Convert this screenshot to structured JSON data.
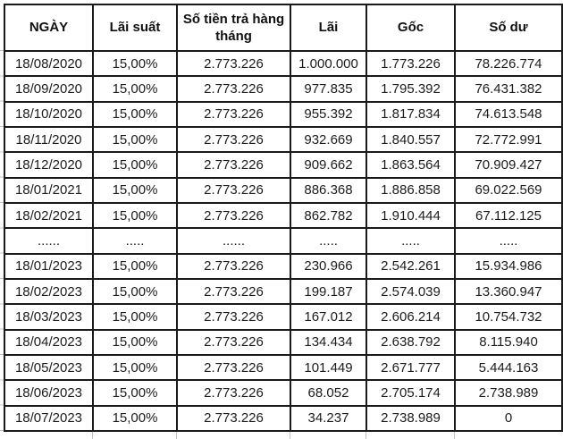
{
  "colors": {
    "background": "#ffffff",
    "table_border": "#1a1a1a",
    "header_text": "#111111",
    "cell_text": "#1c1c1c",
    "excel_gridline": "#c4c4c4"
  },
  "table": {
    "columns": [
      "NGÀY",
      "Lãi suất",
      "Số tiền trả hàng tháng",
      "Lãi",
      "Gốc",
      "Số dư"
    ],
    "rows": [
      [
        "18/08/2020",
        "15,00%",
        "2.773.226",
        "1.000.000",
        "1.773.226",
        "78.226.774"
      ],
      [
        "18/09/2020",
        "15,00%",
        "2.773.226",
        "977.835",
        "1.795.392",
        "76.431.382"
      ],
      [
        "18/10/2020",
        "15,00%",
        "2.773.226",
        "955.392",
        "1.817.834",
        "74.613.548"
      ],
      [
        "18/11/2020",
        "15,00%",
        "2.773.226",
        "932.669",
        "1.840.557",
        "72.772.991"
      ],
      [
        "18/12/2020",
        "15,00%",
        "2.773.226",
        "909.662",
        "1.863.564",
        "70.909.427"
      ],
      [
        "18/01/2021",
        "15,00%",
        "2.773.226",
        "886.368",
        "1.886.858",
        "69.022.569"
      ],
      [
        "18/02/2021",
        "15,00%",
        "2.773.226",
        "862.782",
        "1.910.444",
        "67.112.125"
      ],
      [
        "......",
        ".....",
        "......",
        ".....",
        ".....",
        "....."
      ],
      [
        "18/01/2023",
        "15,00%",
        "2.773.226",
        "230.966",
        "2.542.261",
        "15.934.986"
      ],
      [
        "18/02/2023",
        "15,00%",
        "2.773.226",
        "199.187",
        "2.574.039",
        "13.360.947"
      ],
      [
        "18/03/2023",
        "15,00%",
        "2.773.226",
        "167.012",
        "2.606.214",
        "10.754.732"
      ],
      [
        "18/04/2023",
        "15,00%",
        "2.773.226",
        "134.434",
        "2.638.792",
        "8.115.940"
      ],
      [
        "18/05/2023",
        "15,00%",
        "2.773.226",
        "101.449",
        "2.671.777",
        "5.444.163"
      ],
      [
        "18/06/2023",
        "15,00%",
        "2.773.226",
        "68.052",
        "2.705.174",
        "2.738.989"
      ],
      [
        "18/07/2023",
        "15,00%",
        "2.773.226",
        "34.237",
        "2.738.989",
        "0"
      ]
    ]
  }
}
